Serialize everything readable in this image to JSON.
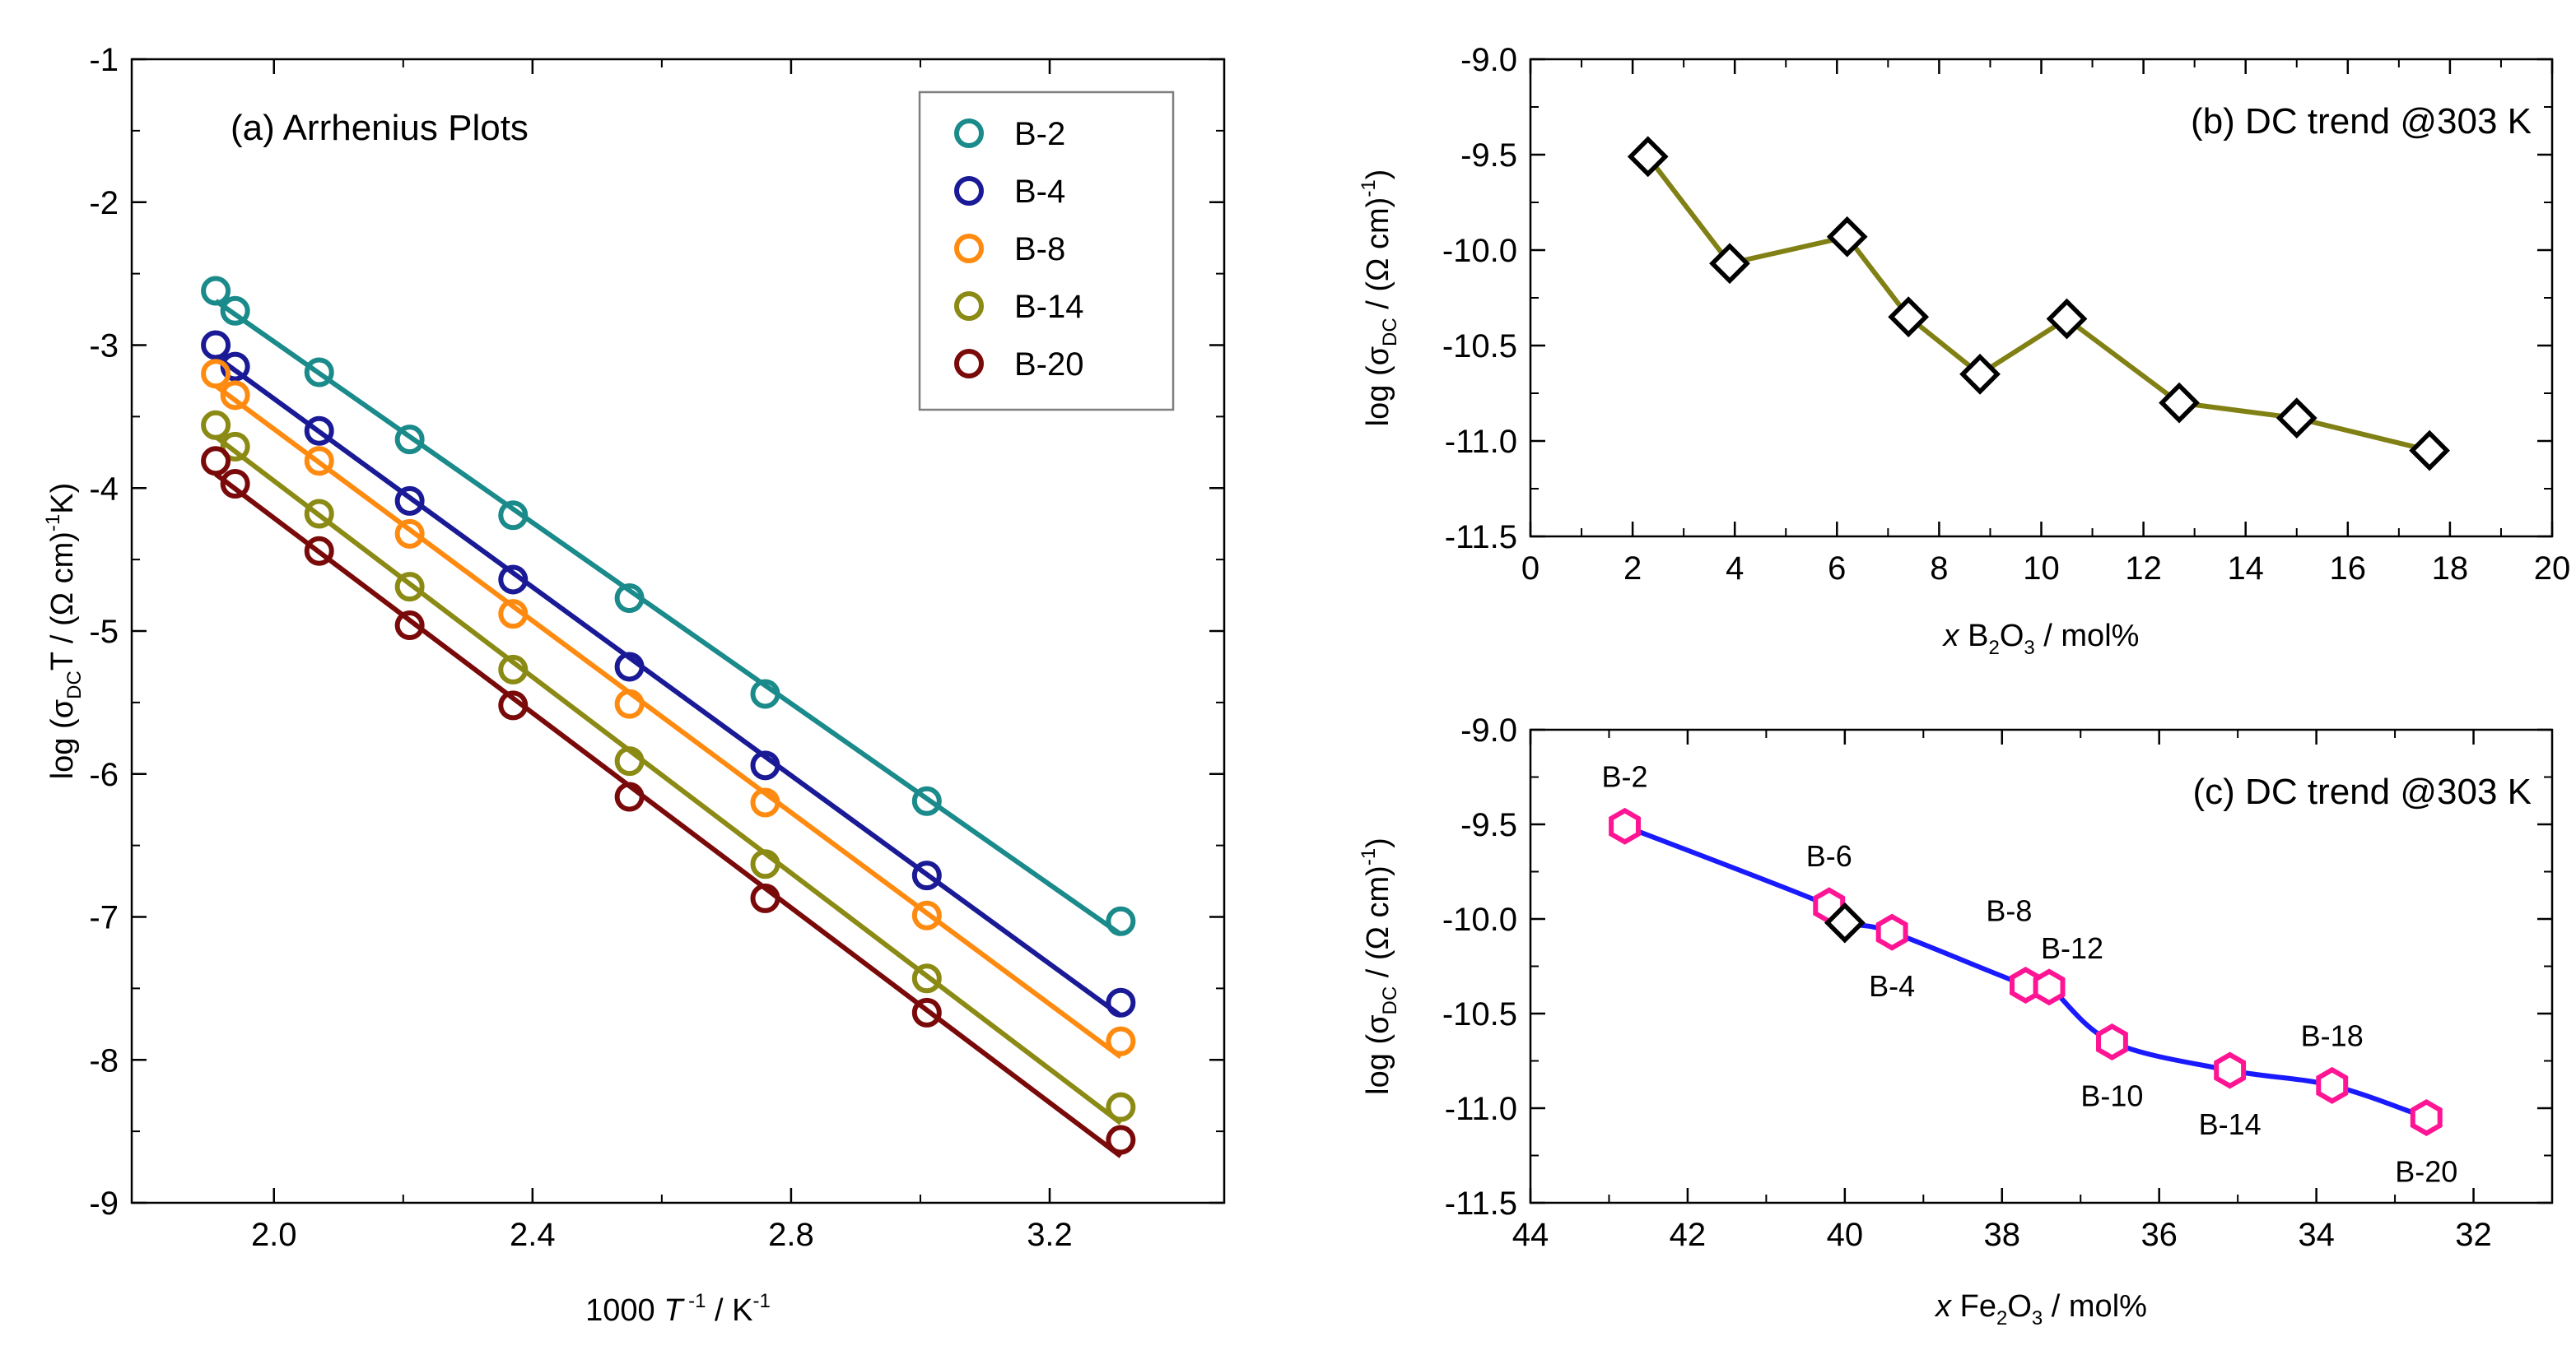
{
  "chart_data": [
    {
      "id": "a",
      "type": "scatter",
      "title": "(a) Arrhenius Plots",
      "xlabel": {
        "pre": "1000 ",
        "italic": "T",
        "sup1": " -1",
        "post": " / K",
        "sup2": "-1"
      },
      "ylabel": {
        "pre": "log (σ",
        "sub": "DC",
        "mid": "T / (Ω cm)",
        "sup": "-1",
        "post": "K)"
      },
      "xlim": [
        1.78,
        3.47
      ],
      "ylim": [
        -9,
        -1
      ],
      "xticks": [
        2.0,
        2.4,
        2.8,
        3.2
      ],
      "xtick_labels": [
        "2.0",
        "2.4",
        "2.8",
        "3.2"
      ],
      "yticks": [
        -9,
        -8,
        -7,
        -6,
        -5,
        -4,
        -3,
        -2,
        -1
      ],
      "ytick_labels": [
        "-9",
        "-8",
        "-7",
        "-6",
        "-5",
        "-4",
        "-3",
        "-2",
        "-1"
      ],
      "x": [
        1.91,
        1.94,
        2.07,
        2.21,
        2.37,
        2.55,
        2.76,
        3.01,
        3.31
      ],
      "legend_position": "top-right",
      "series": [
        {
          "name": "B-2",
          "color": "#1a8a8a",
          "values": [
            -2.62,
            -2.76,
            -3.19,
            -3.66,
            -4.19,
            -4.77,
            -5.44,
            -6.19,
            -7.03
          ]
        },
        {
          "name": "B-4",
          "color": "#1a1a96",
          "values": [
            -3.0,
            -3.15,
            -3.6,
            -4.09,
            -4.64,
            -5.25,
            -5.94,
            -6.71,
            -7.6
          ]
        },
        {
          "name": "B-8",
          "color": "#ff8a10",
          "values": [
            -3.2,
            -3.35,
            -3.81,
            -4.32,
            -4.88,
            -5.51,
            -6.2,
            -6.99,
            -7.87
          ]
        },
        {
          "name": "B-14",
          "color": "#8a8a14",
          "values": [
            -3.56,
            -3.71,
            -4.18,
            -4.69,
            -5.27,
            -5.91,
            -6.63,
            -7.43,
            -8.33
          ]
        },
        {
          "name": "B-20",
          "color": "#7a0a0a",
          "values": [
            -3.81,
            -3.97,
            -4.44,
            -4.96,
            -5.52,
            -6.16,
            -6.87,
            -7.67,
            -8.56
          ]
        }
      ]
    },
    {
      "id": "b",
      "type": "line",
      "title": "(b) DC trend @303 K",
      "xlabel": {
        "italic": "x",
        "pre": " B",
        "sub1": "2",
        "mid": "O",
        "sub2": "3",
        "post": " / mol%"
      },
      "ylabel": {
        "pre": "log (σ",
        "sub": "DC",
        "mid": " / (Ω cm)",
        "sup": "-1",
        "post": ")"
      },
      "xlim": [
        0,
        20
      ],
      "ylim": [
        -11.5,
        -9.0
      ],
      "xticks": [
        0,
        2,
        4,
        6,
        8,
        10,
        12,
        14,
        16,
        18,
        20
      ],
      "xtick_labels": [
        "0",
        "2",
        "4",
        "6",
        "8",
        "10",
        "12",
        "14",
        "16",
        "18",
        "20"
      ],
      "yticks": [
        -11.5,
        -11.0,
        -10.5,
        -10.0,
        -9.5,
        -9.0
      ],
      "ytick_labels": [
        "-11.5",
        "-11.0",
        "-10.5",
        "-10.0",
        "-9.5",
        "-9.0"
      ],
      "line_color": "#808014",
      "marker_color": "#000000",
      "x": [
        2.3,
        3.9,
        6.2,
        7.4,
        8.8,
        10.5,
        12.7,
        15.0,
        17.6
      ],
      "y": [
        -9.51,
        -10.07,
        -9.93,
        -10.35,
        -10.65,
        -10.36,
        -10.8,
        -10.88,
        -11.05
      ]
    },
    {
      "id": "c",
      "type": "line",
      "title": "(c) DC trend @303 K",
      "xlabel": {
        "italic": "x",
        "pre": " Fe",
        "sub1": "2",
        "mid": "O",
        "sub2": "3",
        "post": " / mol%"
      },
      "ylabel": {
        "pre": "log (σ",
        "sub": "DC",
        "mid": " / (Ω cm)",
        "sup": "-1",
        "post": ")"
      },
      "xlim": [
        44,
        31
      ],
      "ylim": [
        -11.5,
        -9.0
      ],
      "xticks": [
        44,
        42,
        40,
        38,
        36,
        34,
        32
      ],
      "xtick_labels": [
        "44",
        "42",
        "40",
        "38",
        "36",
        "34",
        "32"
      ],
      "yticks": [
        -11.5,
        -11.0,
        -10.5,
        -10.0,
        -9.5,
        -9.0
      ],
      "ytick_labels": [
        "-11.5",
        "-11.0",
        "-10.5",
        "-10.0",
        "-9.5",
        "-9.0"
      ],
      "line_color": "#1a1aff",
      "marker_color": "#ff1493",
      "points": [
        {
          "label": "B-2",
          "x": 42.8,
          "y": -9.51,
          "marker": "hexagon",
          "label_pos": "above"
        },
        {
          "label": "B-6",
          "x": 40.2,
          "y": -9.93,
          "marker": "hexagon",
          "label_pos": "above"
        },
        {
          "label": "",
          "x": 40.0,
          "y": -10.02,
          "marker": "diamond",
          "label_pos": "none"
        },
        {
          "label": "B-4",
          "x": 39.4,
          "y": -10.07,
          "marker": "hexagon",
          "label_pos": "below"
        },
        {
          "label": "B-8",
          "x": 37.7,
          "y": -10.35,
          "marker": "hexagon",
          "label_pos": "above-left"
        },
        {
          "label": "B-12",
          "x": 37.4,
          "y": -10.36,
          "marker": "hexagon",
          "label_pos": "above-right"
        },
        {
          "label": "B-10",
          "x": 36.6,
          "y": -10.65,
          "marker": "hexagon",
          "label_pos": "below"
        },
        {
          "label": "B-14",
          "x": 35.1,
          "y": -10.8,
          "marker": "hexagon",
          "label_pos": "below"
        },
        {
          "label": "B-18",
          "x": 33.8,
          "y": -10.88,
          "marker": "hexagon",
          "label_pos": "above"
        },
        {
          "label": "B-20",
          "x": 32.6,
          "y": -11.05,
          "marker": "hexagon",
          "label_pos": "below"
        }
      ]
    }
  ]
}
